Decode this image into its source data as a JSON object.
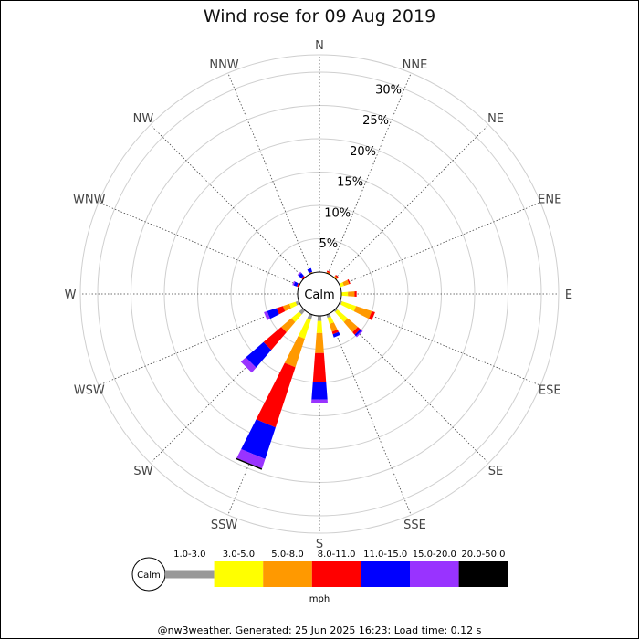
{
  "chart_data": {
    "type": "windrose",
    "title": "Wind rose for 09 Aug 2019",
    "directions": [
      "N",
      "NNE",
      "NE",
      "ENE",
      "E",
      "ESE",
      "SE",
      "SSE",
      "S",
      "SSW",
      "SW",
      "WSW",
      "W",
      "WNW",
      "NW",
      "NNW"
    ],
    "rings": [
      5,
      10,
      15,
      20,
      25,
      30
    ],
    "ring_labels": [
      "5%",
      "10%",
      "15%",
      "20%",
      "25%",
      "30%"
    ],
    "calm_label": "Calm",
    "unit_label": "mph",
    "bins": [
      {
        "label": "1.0-3.0",
        "color": "#999999"
      },
      {
        "label": "3.0-5.0",
        "color": "#ffff00"
      },
      {
        "label": "5.0-8.0",
        "color": "#ff9900"
      },
      {
        "label": "8.0-11.0",
        "color": "#ff0000"
      },
      {
        "label": "11.0-15.0",
        "color": "#0000ff"
      },
      {
        "label": "15.0-20.0",
        "color": "#9933ff"
      },
      {
        "label": "20.0-50.0",
        "color": "#000000"
      }
    ],
    "series": [
      {
        "direction": "N",
        "values": [
          0,
          0,
          0,
          0,
          0,
          0,
          0
        ]
      },
      {
        "direction": "NNE",
        "values": [
          0,
          0,
          0.2,
          0.2,
          0,
          0,
          0
        ]
      },
      {
        "direction": "NE",
        "values": [
          0,
          0,
          0.3,
          0.2,
          0,
          0,
          0
        ]
      },
      {
        "direction": "ENE",
        "values": [
          0,
          0.6,
          0.8,
          0.2,
          0,
          0,
          0
        ]
      },
      {
        "direction": "E",
        "values": [
          0,
          1.0,
          1.0,
          0.3,
          0,
          0,
          0
        ]
      },
      {
        "direction": "ESE",
        "values": [
          0.3,
          2.2,
          2.5,
          0.5,
          0,
          0,
          0
        ]
      },
      {
        "direction": "SE",
        "values": [
          0.3,
          2.0,
          2.0,
          0.5,
          0.3,
          0.2,
          0
        ]
      },
      {
        "direction": "SSE",
        "values": [
          0.5,
          1.0,
          1.2,
          0.4,
          0.5,
          0,
          0
        ]
      },
      {
        "direction": "S",
        "values": [
          0.8,
          1.8,
          3.0,
          4.3,
          2.7,
          0.5,
          0.1
        ]
      },
      {
        "direction": "SSW",
        "values": [
          0.8,
          3.0,
          4.5,
          9.5,
          5.0,
          1.5,
          0.2
        ]
      },
      {
        "direction": "SW",
        "values": [
          0.8,
          1.5,
          2.0,
          3.5,
          3.5,
          1.0,
          0
        ]
      },
      {
        "direction": "WSW",
        "values": [
          0.5,
          1.0,
          1.0,
          1.0,
          1.5,
          0.5,
          0
        ]
      },
      {
        "direction": "W",
        "values": [
          0,
          0,
          0,
          0,
          0,
          0,
          0
        ]
      },
      {
        "direction": "WNW",
        "values": [
          0,
          0,
          0,
          0.3,
          0.5,
          0.2,
          0
        ]
      },
      {
        "direction": "NW",
        "values": [
          0,
          0,
          0,
          0.3,
          0.6,
          0.2,
          0
        ]
      },
      {
        "direction": "NNW",
        "values": [
          0,
          0,
          0.2,
          0,
          0.6,
          0,
          0
        ]
      }
    ]
  },
  "footer": "@nw3weather. Generated: 25 Jun 2025 16:23; Load time: 0.12 s"
}
